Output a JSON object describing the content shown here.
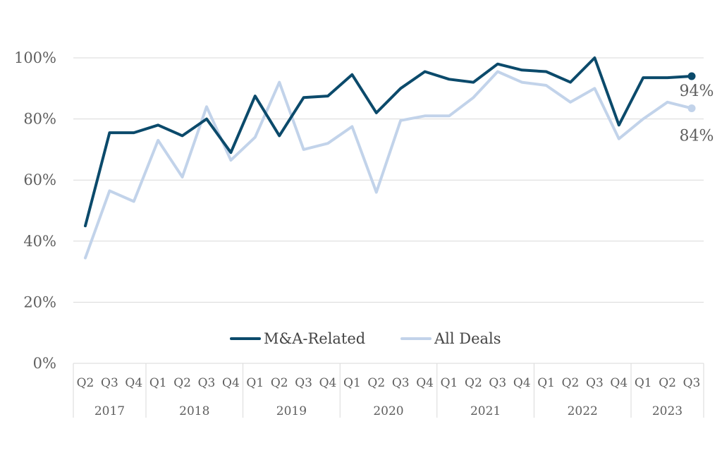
{
  "chart_data": {
    "type": "line",
    "ylim": [
      0,
      100
    ],
    "yticks": [
      0,
      20,
      40,
      60,
      80,
      100
    ],
    "ytick_labels": [
      "0%",
      "20%",
      "40%",
      "60%",
      "80%",
      "100%"
    ],
    "grid": true,
    "legend_position": "bottom-center",
    "categories": [
      "Q2",
      "Q3",
      "Q4",
      "Q1",
      "Q2",
      "Q3",
      "Q4",
      "Q1",
      "Q2",
      "Q3",
      "Q4",
      "Q1",
      "Q2",
      "Q3",
      "Q4",
      "Q1",
      "Q2",
      "Q3",
      "Q4",
      "Q1",
      "Q2",
      "Q3",
      "Q4",
      "Q1",
      "Q2",
      "Q3"
    ],
    "year_groups": [
      {
        "label": "2017",
        "count": 3
      },
      {
        "label": "2018",
        "count": 4
      },
      {
        "label": "2019",
        "count": 4
      },
      {
        "label": "2020",
        "count": 4
      },
      {
        "label": "2021",
        "count": 4
      },
      {
        "label": "2022",
        "count": 4
      },
      {
        "label": "2023",
        "count": 3
      }
    ],
    "series": [
      {
        "name": "M&A-Related",
        "color": "#0b4a6b",
        "values": [
          45,
          75.5,
          75.5,
          78,
          74.5,
          80,
          69,
          87.5,
          74.5,
          87,
          87.5,
          94.5,
          82,
          90,
          95.5,
          93,
          92,
          98,
          96,
          95.5,
          92,
          100,
          78,
          93.5,
          93.5,
          94
        ],
        "end_label": "94%"
      },
      {
        "name": "All Deals",
        "color": "#c2d3ea",
        "values": [
          34.5,
          56.5,
          53,
          73,
          61,
          84,
          66.5,
          74,
          92,
          70,
          72,
          77.5,
          56,
          79.5,
          81,
          81,
          87,
          95.5,
          92,
          91,
          85.5,
          90,
          73.5,
          80,
          85.5,
          83.5
        ],
        "end_label": "84%"
      }
    ]
  }
}
